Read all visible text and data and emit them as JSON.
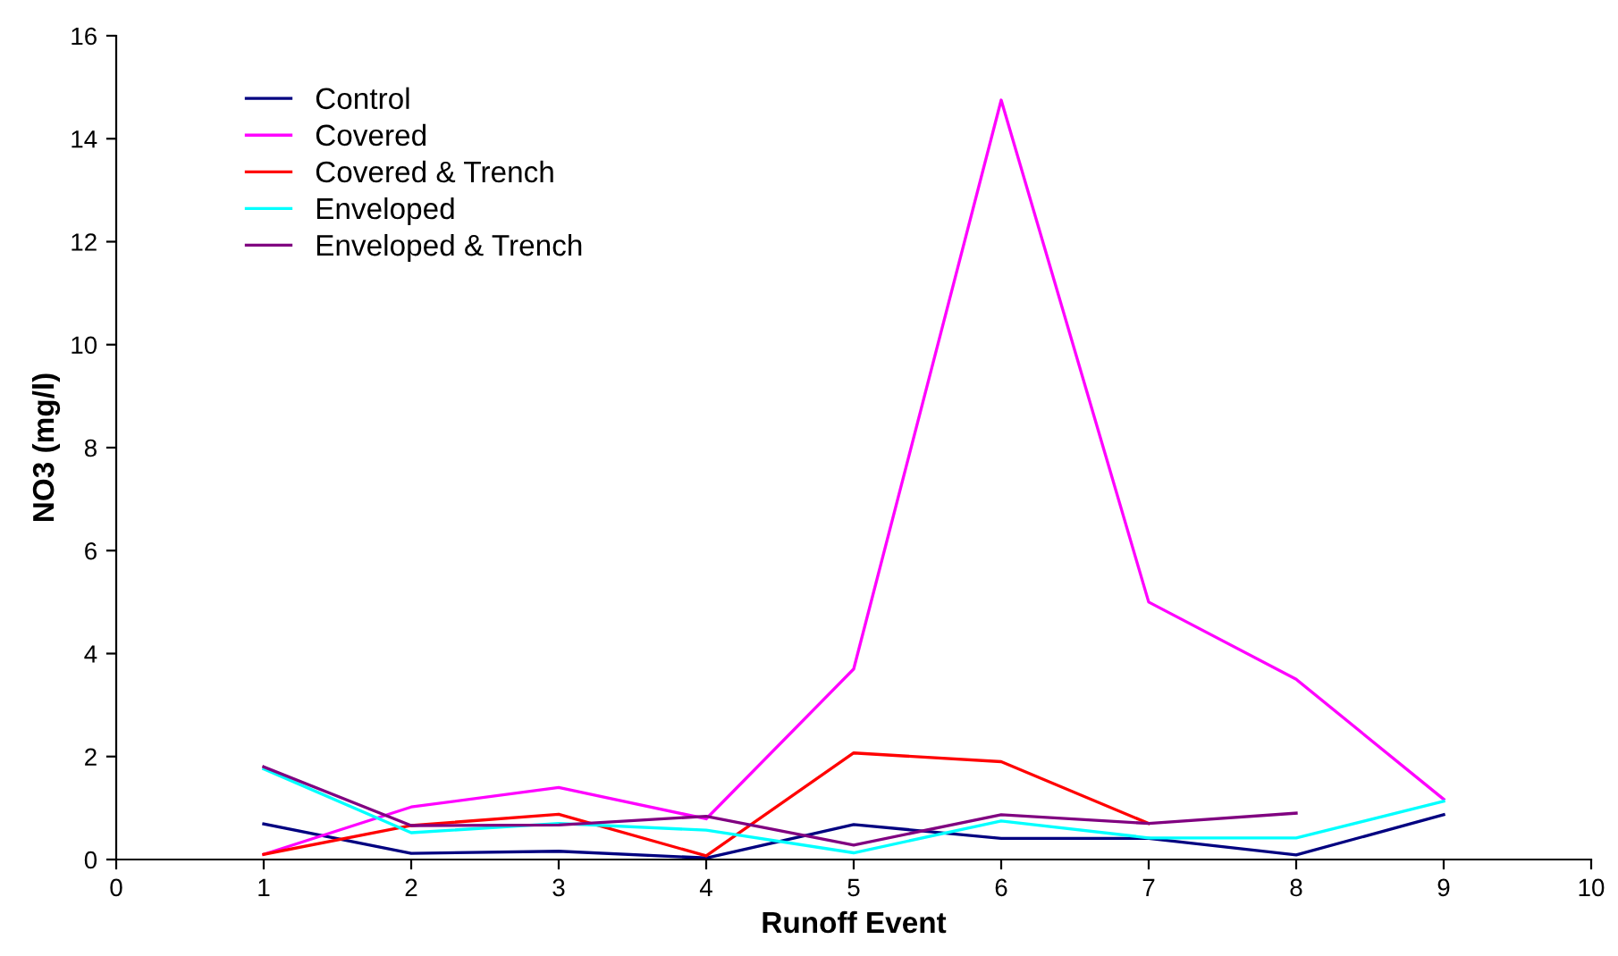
{
  "chart_data": {
    "type": "line",
    "xlabel": "Runoff Event",
    "ylabel": "NO3 (mg/l)",
    "x": [
      1,
      2,
      3,
      4,
      5,
      6,
      7,
      8,
      9
    ],
    "series": [
      {
        "name": "Control",
        "color": "#000080",
        "values": [
          0.69,
          0.12,
          0.16,
          0.03,
          0.68,
          0.41,
          0.41,
          0.09,
          0.87
        ]
      },
      {
        "name": "Covered",
        "color": "#ff00ff",
        "values": [
          0.1,
          1.02,
          1.4,
          0.79,
          3.7,
          14.75,
          5.0,
          3.5,
          1.17
        ]
      },
      {
        "name": "Covered & Trench",
        "color": "#ff0000",
        "values": [
          0.1,
          0.66,
          0.88,
          0.07,
          2.07,
          1.9,
          0.7,
          null,
          null
        ]
      },
      {
        "name": "Enveloped",
        "color": "#00ffff",
        "values": [
          1.76,
          0.52,
          0.7,
          0.57,
          0.13,
          0.75,
          0.42,
          0.42,
          1.13
        ]
      },
      {
        "name": "Enveloped & Trench",
        "color": "#800080",
        "values": [
          1.8,
          0.66,
          0.67,
          0.84,
          0.28,
          0.87,
          0.7,
          0.9,
          null
        ]
      }
    ],
    "xlim": [
      0,
      10
    ],
    "xticks": [
      0,
      1,
      2,
      3,
      4,
      5,
      6,
      7,
      8,
      9,
      10
    ],
    "ylim": [
      0,
      16
    ],
    "yticks": [
      0,
      2,
      4,
      6,
      8,
      10,
      12,
      14,
      16
    ],
    "grid": false,
    "legend": "top left",
    "marker": "none",
    "line_style": "solid"
  }
}
